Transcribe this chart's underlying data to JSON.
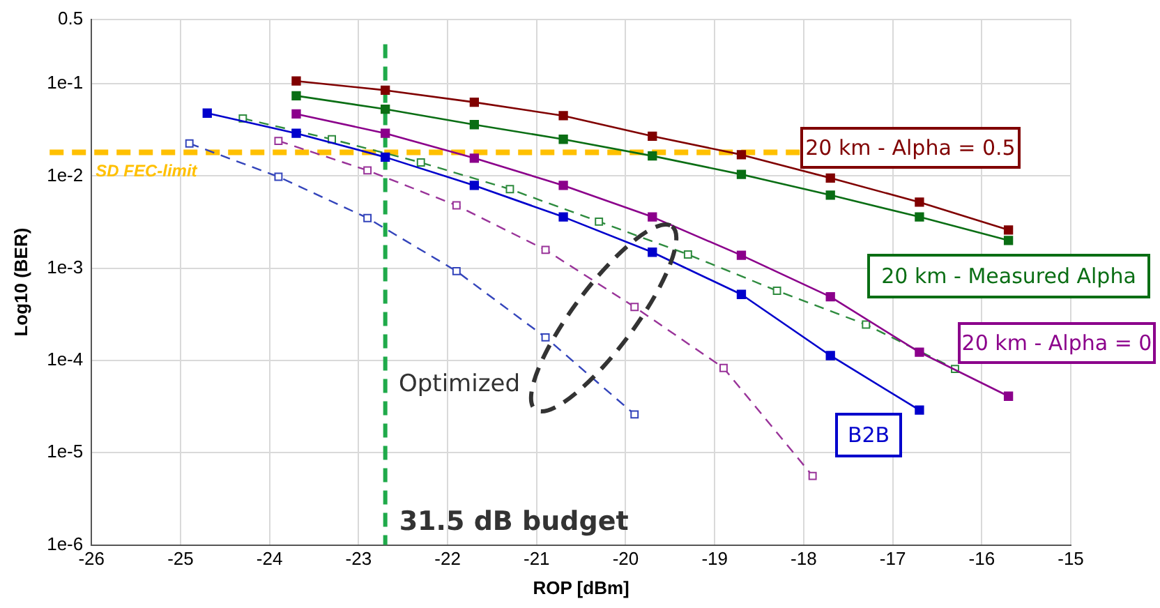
{
  "chart_data": {
    "type": "line",
    "xlabel": "ROP [dBm]",
    "ylabel": "Log10 (BER)",
    "log": "y",
    "grid": true,
    "legend": false,
    "marker": "square",
    "xlim": [
      -26,
      -15
    ],
    "xticks": [
      -26,
      -25,
      -24,
      -23,
      -22,
      -21,
      -20,
      -19,
      -18,
      -17,
      -16,
      -15
    ],
    "ylim": [
      1e-06,
      0.5
    ],
    "yticks": [
      {
        "value": 1e-06,
        "label": "1e-6"
      },
      {
        "value": 1e-05,
        "label": "1e-5"
      },
      {
        "value": 0.0001,
        "label": "1e-4"
      },
      {
        "value": 0.001,
        "label": "1e-3"
      },
      {
        "value": 0.01,
        "label": "1e-2"
      },
      {
        "value": 0.1,
        "label": "1e-1"
      },
      0.5
    ],
    "series": [
      {
        "name": "20 km - Alpha = 0.5",
        "color": "#800000",
        "line_style": "solid",
        "x": [
          -23.7,
          -22.7,
          -21.7,
          -20.7,
          -19.7,
          -18.7,
          -17.7,
          -16.7,
          -15.7
        ],
        "values": [
          0.107,
          0.085,
          0.063,
          0.045,
          0.027,
          0.017,
          0.0095,
          0.0052,
          0.0026
        ]
      },
      {
        "name": "20 km - Measured Alpha",
        "color": "#0a6e14",
        "line_style": "solid",
        "x": [
          -23.7,
          -22.7,
          -21.7,
          -20.7,
          -19.7,
          -18.7,
          -17.7,
          -16.7,
          -15.7
        ],
        "values": [
          0.074,
          0.053,
          0.036,
          0.025,
          0.0165,
          0.0104,
          0.0062,
          0.0036,
          0.002
        ]
      },
      {
        "name": "20 km - Alpha = 0",
        "color": "#8b008b",
        "line_style": "solid",
        "x": [
          -23.7,
          -22.7,
          -21.7,
          -20.7,
          -19.7,
          -18.7,
          -17.7,
          -16.7,
          -15.7
        ],
        "values": [
          0.047,
          0.029,
          0.0156,
          0.0079,
          0.0036,
          0.00138,
          0.00049,
          0.000123,
          4.1e-05
        ]
      },
      {
        "name": "B2B",
        "color": "#0000cc",
        "line_style": "solid",
        "x": [
          -24.7,
          -23.7,
          -22.7,
          -21.7,
          -20.7,
          -19.7,
          -18.7,
          -17.7,
          -16.7
        ],
        "values": [
          0.048,
          0.029,
          0.016,
          0.0079,
          0.0036,
          0.00149,
          0.00052,
          0.000113,
          2.9e-05
        ]
      },
      {
        "color": "#2e8b3e",
        "line_style": "dashed",
        "x": [
          -24.3,
          -23.3,
          -22.3,
          -21.3,
          -20.3,
          -19.3,
          -18.3,
          -17.3,
          -16.3
        ],
        "values": [
          0.042,
          0.025,
          0.014,
          0.0072,
          0.0032,
          0.00141,
          0.00057,
          0.000245,
          8.1e-05
        ]
      },
      {
        "color": "#3344bb",
        "line_style": "dashed",
        "x": [
          -24.9,
          -23.9,
          -22.9,
          -21.9,
          -20.9,
          -19.9
        ],
        "values": [
          0.0225,
          0.0098,
          0.0035,
          0.00093,
          0.000178,
          2.6e-05
        ]
      },
      {
        "color": "#993399",
        "line_style": "dashed",
        "x": [
          -23.9,
          -22.9,
          -21.9,
          -20.9,
          -19.9,
          -18.9,
          -17.9
        ],
        "values": [
          0.024,
          0.0115,
          0.0048,
          0.00158,
          0.00038,
          8.3e-05,
          5.6e-06
        ]
      }
    ],
    "ref_lines": [
      {
        "axis": "x",
        "value": -22.7,
        "label": "31.5 dB budget",
        "color": "#1faa4a",
        "line_style": "dashed"
      },
      {
        "axis": "y",
        "value": 0.018,
        "label": "SD FEC-limit",
        "color": "#ffc000",
        "line_style": "dashed"
      }
    ],
    "annotations": [
      "Optimized"
    ]
  }
}
